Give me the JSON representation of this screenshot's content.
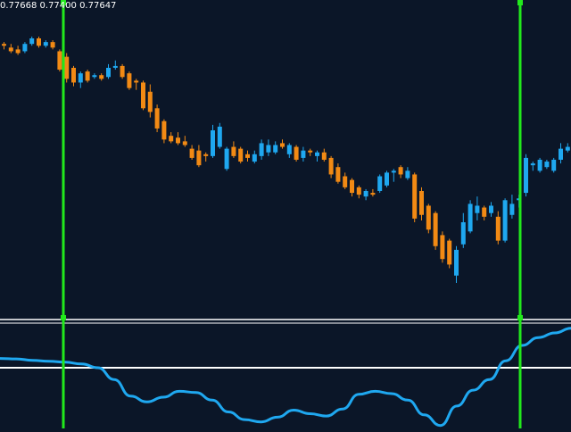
{
  "header": {
    "ohlc_text": "0.77668 0.77400 0.77647"
  },
  "colors": {
    "background": "#0b1628",
    "bull": "#1fa8f0",
    "bear": "#f28a14",
    "marker": "#22e81c",
    "separator": "#ffffff",
    "indicator_line": "#1fa8f0",
    "indicator_zero": "#ffffff"
  },
  "chart_data": {
    "type": "candlestick",
    "price_range": [
      0.7605,
      0.7772
    ],
    "last_prices_shown": [
      0.77668,
      0.774,
      0.77647
    ],
    "candles": [
      {
        "o": 0.7752,
        "h": 0.7753,
        "l": 0.7749,
        "c": 0.7751,
        "dir": "down"
      },
      {
        "o": 0.775,
        "h": 0.7752,
        "l": 0.7747,
        "c": 0.7748,
        "dir": "down"
      },
      {
        "o": 0.7749,
        "h": 0.7751,
        "l": 0.7746,
        "c": 0.7747,
        "dir": "down"
      },
      {
        "o": 0.7748,
        "h": 0.7753,
        "l": 0.7747,
        "c": 0.7752,
        "dir": "up"
      },
      {
        "o": 0.7752,
        "h": 0.7756,
        "l": 0.7751,
        "c": 0.7755,
        "dir": "up"
      },
      {
        "o": 0.7755,
        "h": 0.7756,
        "l": 0.775,
        "c": 0.7751,
        "dir": "down"
      },
      {
        "o": 0.7751,
        "h": 0.7754,
        "l": 0.775,
        "c": 0.7753,
        "dir": "up"
      },
      {
        "o": 0.7753,
        "h": 0.7754,
        "l": 0.7749,
        "c": 0.775,
        "dir": "down"
      },
      {
        "o": 0.7748,
        "h": 0.7749,
        "l": 0.7737,
        "c": 0.7738,
        "dir": "down"
      },
      {
        "o": 0.7745,
        "h": 0.7747,
        "l": 0.7731,
        "c": 0.7733,
        "dir": "down"
      },
      {
        "o": 0.7739,
        "h": 0.774,
        "l": 0.7729,
        "c": 0.7731,
        "dir": "down"
      },
      {
        "o": 0.7731,
        "h": 0.7737,
        "l": 0.7728,
        "c": 0.7736,
        "dir": "up"
      },
      {
        "o": 0.7737,
        "h": 0.7738,
        "l": 0.7731,
        "c": 0.7732,
        "dir": "down"
      },
      {
        "o": 0.7734,
        "h": 0.7736,
        "l": 0.7733,
        "c": 0.7735,
        "dir": "up"
      },
      {
        "o": 0.7735,
        "h": 0.7736,
        "l": 0.7732,
        "c": 0.7733,
        "dir": "down"
      },
      {
        "o": 0.7734,
        "h": 0.7741,
        "l": 0.7733,
        "c": 0.7739,
        "dir": "up"
      },
      {
        "o": 0.774,
        "h": 0.7743,
        "l": 0.7738,
        "c": 0.7739,
        "dir": "up"
      },
      {
        "o": 0.774,
        "h": 0.7741,
        "l": 0.7733,
        "c": 0.7734,
        "dir": "down"
      },
      {
        "o": 0.7736,
        "h": 0.7737,
        "l": 0.7727,
        "c": 0.7728,
        "dir": "down"
      },
      {
        "o": 0.7731,
        "h": 0.7733,
        "l": 0.7727,
        "c": 0.7732,
        "dir": "down"
      },
      {
        "o": 0.7731,
        "h": 0.7732,
        "l": 0.7716,
        "c": 0.7717,
        "dir": "down"
      },
      {
        "o": 0.7726,
        "h": 0.773,
        "l": 0.7712,
        "c": 0.7715,
        "dir": "down"
      },
      {
        "o": 0.7717,
        "h": 0.7719,
        "l": 0.7704,
        "c": 0.7706,
        "dir": "down"
      },
      {
        "o": 0.771,
        "h": 0.7711,
        "l": 0.7698,
        "c": 0.77,
        "dir": "down"
      },
      {
        "o": 0.7702,
        "h": 0.7704,
        "l": 0.7698,
        "c": 0.7699,
        "dir": "down"
      },
      {
        "o": 0.7701,
        "h": 0.7704,
        "l": 0.7697,
        "c": 0.7698,
        "dir": "down"
      },
      {
        "o": 0.7699,
        "h": 0.7702,
        "l": 0.7696,
        "c": 0.7697,
        "dir": "down"
      },
      {
        "o": 0.7695,
        "h": 0.7697,
        "l": 0.7689,
        "c": 0.769,
        "dir": "down"
      },
      {
        "o": 0.7694,
        "h": 0.7697,
        "l": 0.7685,
        "c": 0.7686,
        "dir": "down"
      },
      {
        "o": 0.7691,
        "h": 0.7693,
        "l": 0.7688,
        "c": 0.7692,
        "dir": "down"
      },
      {
        "o": 0.7691,
        "h": 0.7708,
        "l": 0.769,
        "c": 0.7705,
        "dir": "up"
      },
      {
        "o": 0.7707,
        "h": 0.7709,
        "l": 0.7695,
        "c": 0.7696,
        "dir": "up"
      },
      {
        "o": 0.7695,
        "h": 0.7696,
        "l": 0.7683,
        "c": 0.7684,
        "dir": "up"
      },
      {
        "o": 0.7696,
        "h": 0.7699,
        "l": 0.769,
        "c": 0.7691,
        "dir": "down"
      },
      {
        "o": 0.7695,
        "h": 0.7696,
        "l": 0.7687,
        "c": 0.7688,
        "dir": "down"
      },
      {
        "o": 0.7692,
        "h": 0.7694,
        "l": 0.7688,
        "c": 0.769,
        "dir": "down"
      },
      {
        "o": 0.7688,
        "h": 0.7694,
        "l": 0.7687,
        "c": 0.7692,
        "dir": "up"
      },
      {
        "o": 0.7691,
        "h": 0.77,
        "l": 0.7689,
        "c": 0.7698,
        "dir": "up"
      },
      {
        "o": 0.7697,
        "h": 0.77,
        "l": 0.7691,
        "c": 0.7693,
        "dir": "up"
      },
      {
        "o": 0.7693,
        "h": 0.7699,
        "l": 0.7692,
        "c": 0.7697,
        "dir": "up"
      },
      {
        "o": 0.7698,
        "h": 0.77,
        "l": 0.7695,
        "c": 0.7696,
        "dir": "down"
      },
      {
        "o": 0.7692,
        "h": 0.7698,
        "l": 0.769,
        "c": 0.7697,
        "dir": "up"
      },
      {
        "o": 0.7696,
        "h": 0.7697,
        "l": 0.7688,
        "c": 0.7689,
        "dir": "down"
      },
      {
        "o": 0.769,
        "h": 0.7696,
        "l": 0.7688,
        "c": 0.7694,
        "dir": "up"
      },
      {
        "o": 0.7694,
        "h": 0.7695,
        "l": 0.7691,
        "c": 0.7693,
        "dir": "down"
      },
      {
        "o": 0.7691,
        "h": 0.7694,
        "l": 0.7688,
        "c": 0.7693,
        "dir": "up"
      },
      {
        "o": 0.7693,
        "h": 0.7695,
        "l": 0.7688,
        "c": 0.7689,
        "dir": "down"
      },
      {
        "o": 0.769,
        "h": 0.7691,
        "l": 0.7679,
        "c": 0.7681,
        "dir": "down"
      },
      {
        "o": 0.7685,
        "h": 0.7687,
        "l": 0.7676,
        "c": 0.7677,
        "dir": "down"
      },
      {
        "o": 0.768,
        "h": 0.7682,
        "l": 0.7673,
        "c": 0.7674,
        "dir": "down"
      },
      {
        "o": 0.7678,
        "h": 0.7679,
        "l": 0.7669,
        "c": 0.7671,
        "dir": "down"
      },
      {
        "o": 0.7674,
        "h": 0.7675,
        "l": 0.7668,
        "c": 0.767,
        "dir": "down"
      },
      {
        "o": 0.7669,
        "h": 0.7673,
        "l": 0.7667,
        "c": 0.7672,
        "dir": "up"
      },
      {
        "o": 0.7671,
        "h": 0.7673,
        "l": 0.7669,
        "c": 0.767,
        "dir": "down"
      },
      {
        "o": 0.7672,
        "h": 0.7681,
        "l": 0.7671,
        "c": 0.768,
        "dir": "up"
      },
      {
        "o": 0.7675,
        "h": 0.7683,
        "l": 0.7674,
        "c": 0.7682,
        "dir": "up"
      },
      {
        "o": 0.7682,
        "h": 0.7684,
        "l": 0.7677,
        "c": 0.7683,
        "dir": "up"
      },
      {
        "o": 0.7685,
        "h": 0.7686,
        "l": 0.7679,
        "c": 0.7681,
        "dir": "down"
      },
      {
        "o": 0.7679,
        "h": 0.7685,
        "l": 0.7678,
        "c": 0.7683,
        "dir": "up"
      },
      {
        "o": 0.7681,
        "h": 0.7682,
        "l": 0.7655,
        "c": 0.7657,
        "dir": "down"
      },
      {
        "o": 0.7672,
        "h": 0.7674,
        "l": 0.7656,
        "c": 0.7659,
        "dir": "down"
      },
      {
        "o": 0.7664,
        "h": 0.7665,
        "l": 0.7649,
        "c": 0.7651,
        "dir": "down"
      },
      {
        "o": 0.766,
        "h": 0.7661,
        "l": 0.764,
        "c": 0.7642,
        "dir": "down"
      },
      {
        "o": 0.7648,
        "h": 0.765,
        "l": 0.7633,
        "c": 0.7635,
        "dir": "down"
      },
      {
        "o": 0.7645,
        "h": 0.7646,
        "l": 0.763,
        "c": 0.7632,
        "dir": "down"
      },
      {
        "o": 0.7626,
        "h": 0.7642,
        "l": 0.7622,
        "c": 0.764,
        "dir": "up"
      },
      {
        "o": 0.7643,
        "h": 0.766,
        "l": 0.7641,
        "c": 0.7655,
        "dir": "up"
      },
      {
        "o": 0.765,
        "h": 0.7667,
        "l": 0.7649,
        "c": 0.7665,
        "dir": "up"
      },
      {
        "o": 0.7664,
        "h": 0.7669,
        "l": 0.7656,
        "c": 0.766,
        "dir": "up"
      },
      {
        "o": 0.7663,
        "h": 0.7664,
        "l": 0.7656,
        "c": 0.7658,
        "dir": "down"
      },
      {
        "o": 0.766,
        "h": 0.7666,
        "l": 0.7658,
        "c": 0.7664,
        "dir": "up"
      },
      {
        "o": 0.7658,
        "h": 0.7661,
        "l": 0.7643,
        "c": 0.7645,
        "dir": "down"
      },
      {
        "o": 0.7645,
        "h": 0.7668,
        "l": 0.7644,
        "c": 0.7667,
        "dir": "up"
      },
      {
        "o": 0.7659,
        "h": 0.767,
        "l": 0.7657,
        "c": 0.7665,
        "dir": "up"
      },
      {
        "o": 0.7668,
        "h": 0.767,
        "l": 0.7663,
        "c": 0.7667,
        "dir": "up"
      },
      {
        "o": 0.7671,
        "h": 0.7692,
        "l": 0.7669,
        "c": 0.769,
        "dir": "up"
      },
      {
        "o": 0.7686,
        "h": 0.7688,
        "l": 0.7683,
        "c": 0.7687,
        "dir": "up"
      },
      {
        "o": 0.7683,
        "h": 0.769,
        "l": 0.7682,
        "c": 0.7689,
        "dir": "up"
      },
      {
        "o": 0.7685,
        "h": 0.7689,
        "l": 0.7684,
        "c": 0.7688,
        "dir": "up"
      },
      {
        "o": 0.7683,
        "h": 0.769,
        "l": 0.7682,
        "c": 0.7689,
        "dir": "up"
      },
      {
        "o": 0.7689,
        "h": 0.7698,
        "l": 0.7687,
        "c": 0.7695,
        "dir": "up"
      },
      {
        "o": 0.7694,
        "h": 0.7698,
        "l": 0.7693,
        "c": 0.7696,
        "dir": "up"
      },
      {
        "o": 0.7695,
        "h": 0.77,
        "l": 0.7694,
        "c": 0.7699,
        "dir": "up"
      }
    ],
    "vertical_markers": [
      "marker-1",
      "marker-2"
    ],
    "indicator": {
      "zero_line": 0,
      "range": [
        -1.0,
        1.0
      ],
      "values": [
        0.2,
        0.19,
        0.16,
        0.14,
        0.12,
        0.08,
        0.0,
        -0.2,
        -0.48,
        -0.58,
        -0.5,
        -0.4,
        -0.42,
        -0.55,
        -0.75,
        -0.88,
        -0.92,
        -0.84,
        -0.72,
        -0.78,
        -0.82,
        -0.7,
        -0.45,
        -0.4,
        -0.44,
        -0.55,
        -0.8,
        -0.98,
        -0.65,
        -0.38,
        -0.2,
        0.15,
        0.48,
        0.65,
        0.75,
        0.85
      ]
    }
  }
}
